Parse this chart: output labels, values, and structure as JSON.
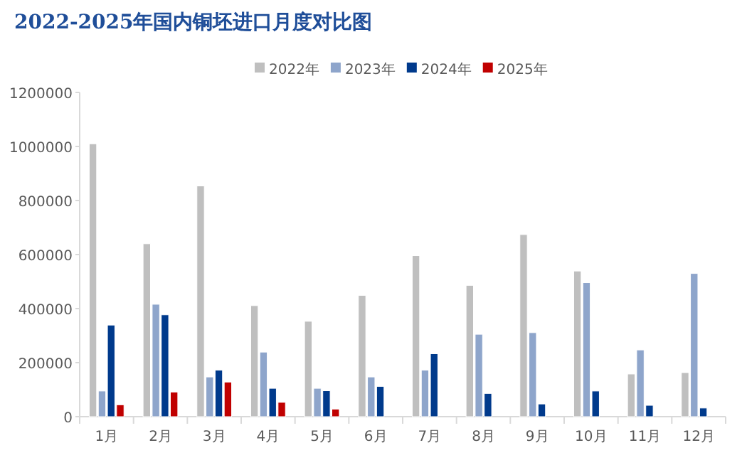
{
  "chart_data": {
    "type": "bar",
    "title": "2022-2025年国内铜坯进口月度对比图",
    "categories": [
      "1月",
      "2月",
      "3月",
      "4月",
      "5月",
      "6月",
      "7月",
      "8月",
      "9月",
      "10月",
      "11月",
      "12月"
    ],
    "series": [
      {
        "name": "2022年",
        "color": "#bfbfbf",
        "values": [
          1010000,
          640000,
          854000,
          411000,
          353000,
          449000,
          596000,
          486000,
          674000,
          539000,
          158000,
          163000
        ]
      },
      {
        "name": "2023年",
        "color": "#8ea5cb",
        "values": [
          95000,
          416000,
          147000,
          239000,
          105000,
          147000,
          172000,
          305000,
          311000,
          496000,
          247000,
          530000
        ]
      },
      {
        "name": "2024年",
        "color": "#003a8c",
        "values": [
          339000,
          377000,
          172000,
          105000,
          96000,
          112000,
          233000,
          86000,
          47000,
          95000,
          42000,
          32000
        ]
      },
      {
        "name": "2025年",
        "color": "#c00000",
        "values": [
          44000,
          91000,
          128000,
          53000,
          28000,
          null,
          null,
          null,
          null,
          null,
          null,
          null
        ]
      }
    ],
    "ylim": [
      0,
      1200000
    ],
    "yticks": [
      0,
      200000,
      400000,
      600000,
      800000,
      1000000,
      1200000
    ],
    "legend": "top",
    "grid": false
  }
}
